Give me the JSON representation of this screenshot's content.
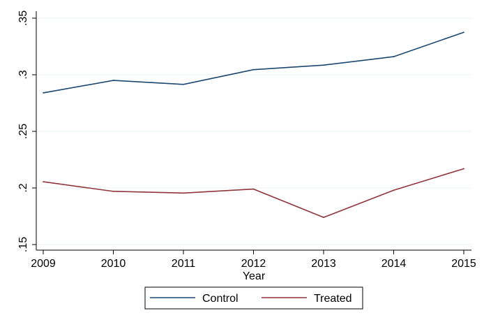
{
  "chart_data": {
    "type": "line",
    "title": "",
    "xlabel": "Year",
    "ylabel": "",
    "x": [
      2009,
      2010,
      2011,
      2012,
      2013,
      2014,
      2015
    ],
    "x_tick_labels": [
      "2009",
      "2010",
      "2011",
      "2012",
      "2013",
      "2014",
      "2015"
    ],
    "ylim": [
      0.15,
      0.35
    ],
    "y_ticks": [
      0.15,
      0.2,
      0.25,
      0.3,
      0.35
    ],
    "y_tick_labels": [
      ".15",
      ".2",
      ".25",
      ".3",
      ".35"
    ],
    "grid": true,
    "legend_position": "bottom",
    "series": [
      {
        "name": "Control",
        "color": "#1a476f",
        "values": [
          0.284,
          0.295,
          0.2915,
          0.3045,
          0.3085,
          0.316,
          0.3375
        ]
      },
      {
        "name": "Treated",
        "color": "#90353b",
        "values": [
          0.2055,
          0.197,
          0.1955,
          0.199,
          0.174,
          0.198,
          0.217
        ]
      }
    ]
  }
}
